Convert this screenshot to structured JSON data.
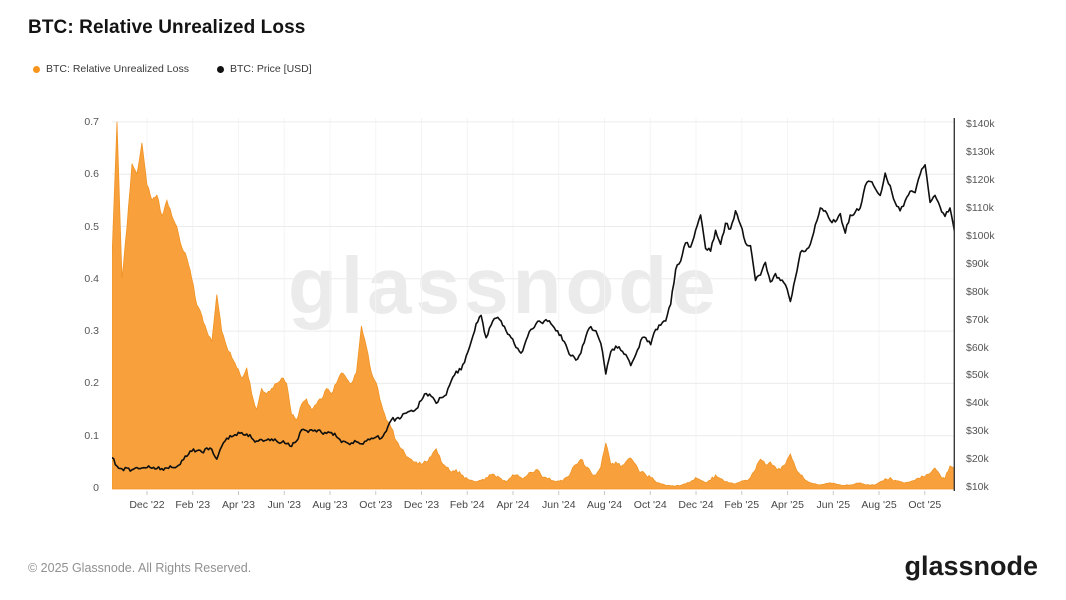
{
  "header": {
    "title": "BTC: Relative Unrealized Loss"
  },
  "legend": [
    {
      "label": "BTC: Relative Unrealized Loss",
      "color": "#f7941e"
    },
    {
      "label": "BTC: Price [USD]",
      "color": "#111111"
    }
  ],
  "watermark": "glassnode",
  "footer": {
    "copyright": "© 2025 Glassnode. All Rights Reserved.",
    "brand": "glassnode"
  },
  "colors": {
    "area_fill": "#f8a13c",
    "area_edge": "#f09324",
    "price_line": "#0f0f0f",
    "grid_h": "#ececec",
    "grid_v": "#f4f4f4",
    "axis_line": "#3a3a3a",
    "tick_mark": "#c9c9c9"
  },
  "chart_data": {
    "type": "area",
    "title": "BTC: Relative Unrealized Loss",
    "x_tick_labels": [
      "Dec '22",
      "Feb '23",
      "Apr '23",
      "Jun '23",
      "Aug '23",
      "Oct '23",
      "Dec '23",
      "Feb '24",
      "Apr '24",
      "Jun '24",
      "Aug '24",
      "Oct '24",
      "Dec '24",
      "Feb '25",
      "Apr '25",
      "Jun '25",
      "Aug '25",
      "Oct '25"
    ],
    "left_axis": {
      "tick_values": [
        0,
        0.1,
        0.2,
        0.3,
        0.4,
        0.5,
        0.6,
        0.7
      ],
      "range": [
        0,
        0.707
      ],
      "grid": true
    },
    "right_axis": {
      "tick_labels": [
        "$10k",
        "$20k",
        "$30k",
        "$40k",
        "$50k",
        "$60k",
        "$70k",
        "$80k",
        "$90k",
        "$100k",
        "$110k",
        "$120k",
        "$130k",
        "$140k"
      ],
      "tick_values_k": [
        10,
        20,
        30,
        40,
        50,
        60,
        70,
        80,
        90,
        100,
        110,
        120,
        130,
        140
      ],
      "range_k": [
        10,
        142.3
      ]
    },
    "series": [
      {
        "name": "BTC: Relative Unrealized Loss",
        "type": "area",
        "axis": "left",
        "color": "#f8a13c",
        "values": [
          0.44,
          0.7,
          0.4,
          0.5,
          0.62,
          0.6,
          0.66,
          0.58,
          0.55,
          0.56,
          0.52,
          0.55,
          0.52,
          0.5,
          0.46,
          0.44,
          0.4,
          0.35,
          0.33,
          0.3,
          0.28,
          0.37,
          0.3,
          0.27,
          0.25,
          0.23,
          0.21,
          0.23,
          0.18,
          0.15,
          0.19,
          0.18,
          0.19,
          0.2,
          0.21,
          0.2,
          0.14,
          0.13,
          0.16,
          0.17,
          0.15,
          0.16,
          0.17,
          0.19,
          0.18,
          0.2,
          0.22,
          0.21,
          0.2,
          0.22,
          0.31,
          0.27,
          0.22,
          0.2,
          0.16,
          0.13,
          0.115,
          0.09,
          0.075,
          0.06,
          0.055,
          0.05,
          0.045,
          0.05,
          0.06,
          0.075,
          0.05,
          0.04,
          0.03,
          0.035,
          0.025,
          0.02,
          0.015,
          0.012,
          0.015,
          0.02,
          0.025,
          0.02,
          0.018,
          0.012,
          0.02,
          0.025,
          0.02,
          0.022,
          0.03,
          0.035,
          0.025,
          0.02,
          0.015,
          0.012,
          0.015,
          0.02,
          0.03,
          0.045,
          0.055,
          0.04,
          0.03,
          0.025,
          0.04,
          0.086,
          0.045,
          0.05,
          0.04,
          0.05,
          0.057,
          0.045,
          0.03,
          0.025,
          0.02,
          0.012,
          0.008,
          0.005,
          0.004,
          0.004,
          0.005,
          0.008,
          0.012,
          0.02,
          0.015,
          0.01,
          0.015,
          0.025,
          0.018,
          0.012,
          0.01,
          0.008,
          0.012,
          0.015,
          0.02,
          0.035,
          0.055,
          0.045,
          0.05,
          0.04,
          0.035,
          0.045,
          0.065,
          0.04,
          0.025,
          0.015,
          0.01,
          0.008,
          0.006,
          0.008,
          0.01,
          0.008,
          0.006,
          0.005,
          0.006,
          0.008,
          0.01,
          0.006,
          0.005,
          0.006,
          0.012,
          0.018,
          0.02,
          0.015,
          0.012,
          0.01,
          0.012,
          0.015,
          0.018,
          0.022,
          0.028,
          0.038,
          0.025,
          0.018,
          0.042,
          0.035
        ]
      },
      {
        "name": "BTC: Price [USD]",
        "type": "line",
        "axis": "right",
        "color": "#0f0f0f",
        "unit_k_usd": true,
        "values": [
          20.5,
          17.5,
          16.5,
          16.8,
          16.2,
          17.0,
          16.8,
          16.9,
          16.7,
          16.6,
          16.6,
          16.8,
          17.0,
          17.3,
          19.5,
          21.0,
          22.8,
          23.0,
          22.5,
          24.0,
          23.5,
          20.0,
          24.5,
          27.5,
          28.0,
          28.5,
          29.5,
          29.0,
          27.5,
          26.5,
          27.0,
          26.8,
          27.2,
          26.5,
          26.0,
          25.5,
          24.5,
          26.5,
          30.5,
          30.2,
          30.5,
          29.8,
          29.5,
          29.2,
          29.5,
          28.0,
          26.0,
          26.0,
          25.8,
          26.2,
          25.5,
          26.5,
          27.5,
          28.0,
          27.5,
          30.0,
          34.0,
          34.5,
          35.0,
          36.5,
          37.5,
          38.0,
          41.0,
          43.5,
          42.5,
          40.0,
          42.0,
          43.0,
          48.0,
          51.5,
          52.0,
          57.0,
          62.0,
          68.5,
          71.5,
          63.5,
          68.0,
          70.5,
          69.5,
          66.0,
          63.5,
          60.0,
          58.0,
          62.5,
          66.5,
          68.5,
          69.0,
          70.0,
          68.5,
          66.0,
          64.5,
          61.0,
          57.0,
          55.5,
          58.0,
          64.0,
          67.5,
          66.0,
          61.5,
          50.5,
          58.5,
          60.5,
          59.0,
          57.5,
          53.5,
          57.5,
          62.5,
          63.5,
          61.0,
          66.5,
          68.0,
          69.5,
          75.5,
          88.0,
          91.0,
          97.5,
          96.0,
          102.0,
          107.5,
          95.5,
          94.5,
          102.0,
          97.0,
          104.5,
          102.5,
          109.0,
          104.0,
          97.5,
          96.5,
          84.0,
          86.0,
          90.5,
          83.5,
          86.5,
          84.0,
          82.5,
          76.5,
          85.0,
          94.0,
          94.5,
          97.0,
          104.0,
          110.0,
          109.0,
          105.5,
          105.0,
          108.0,
          101.0,
          107.5,
          108.5,
          110.0,
          118.0,
          119.5,
          117.0,
          114.5,
          122.5,
          118.0,
          112.0,
          109.0,
          112.5,
          116.0,
          115.5,
          122.0,
          125.5,
          112.0,
          114.5,
          110.5,
          107.0,
          110.0,
          100.5
        ]
      }
    ]
  }
}
